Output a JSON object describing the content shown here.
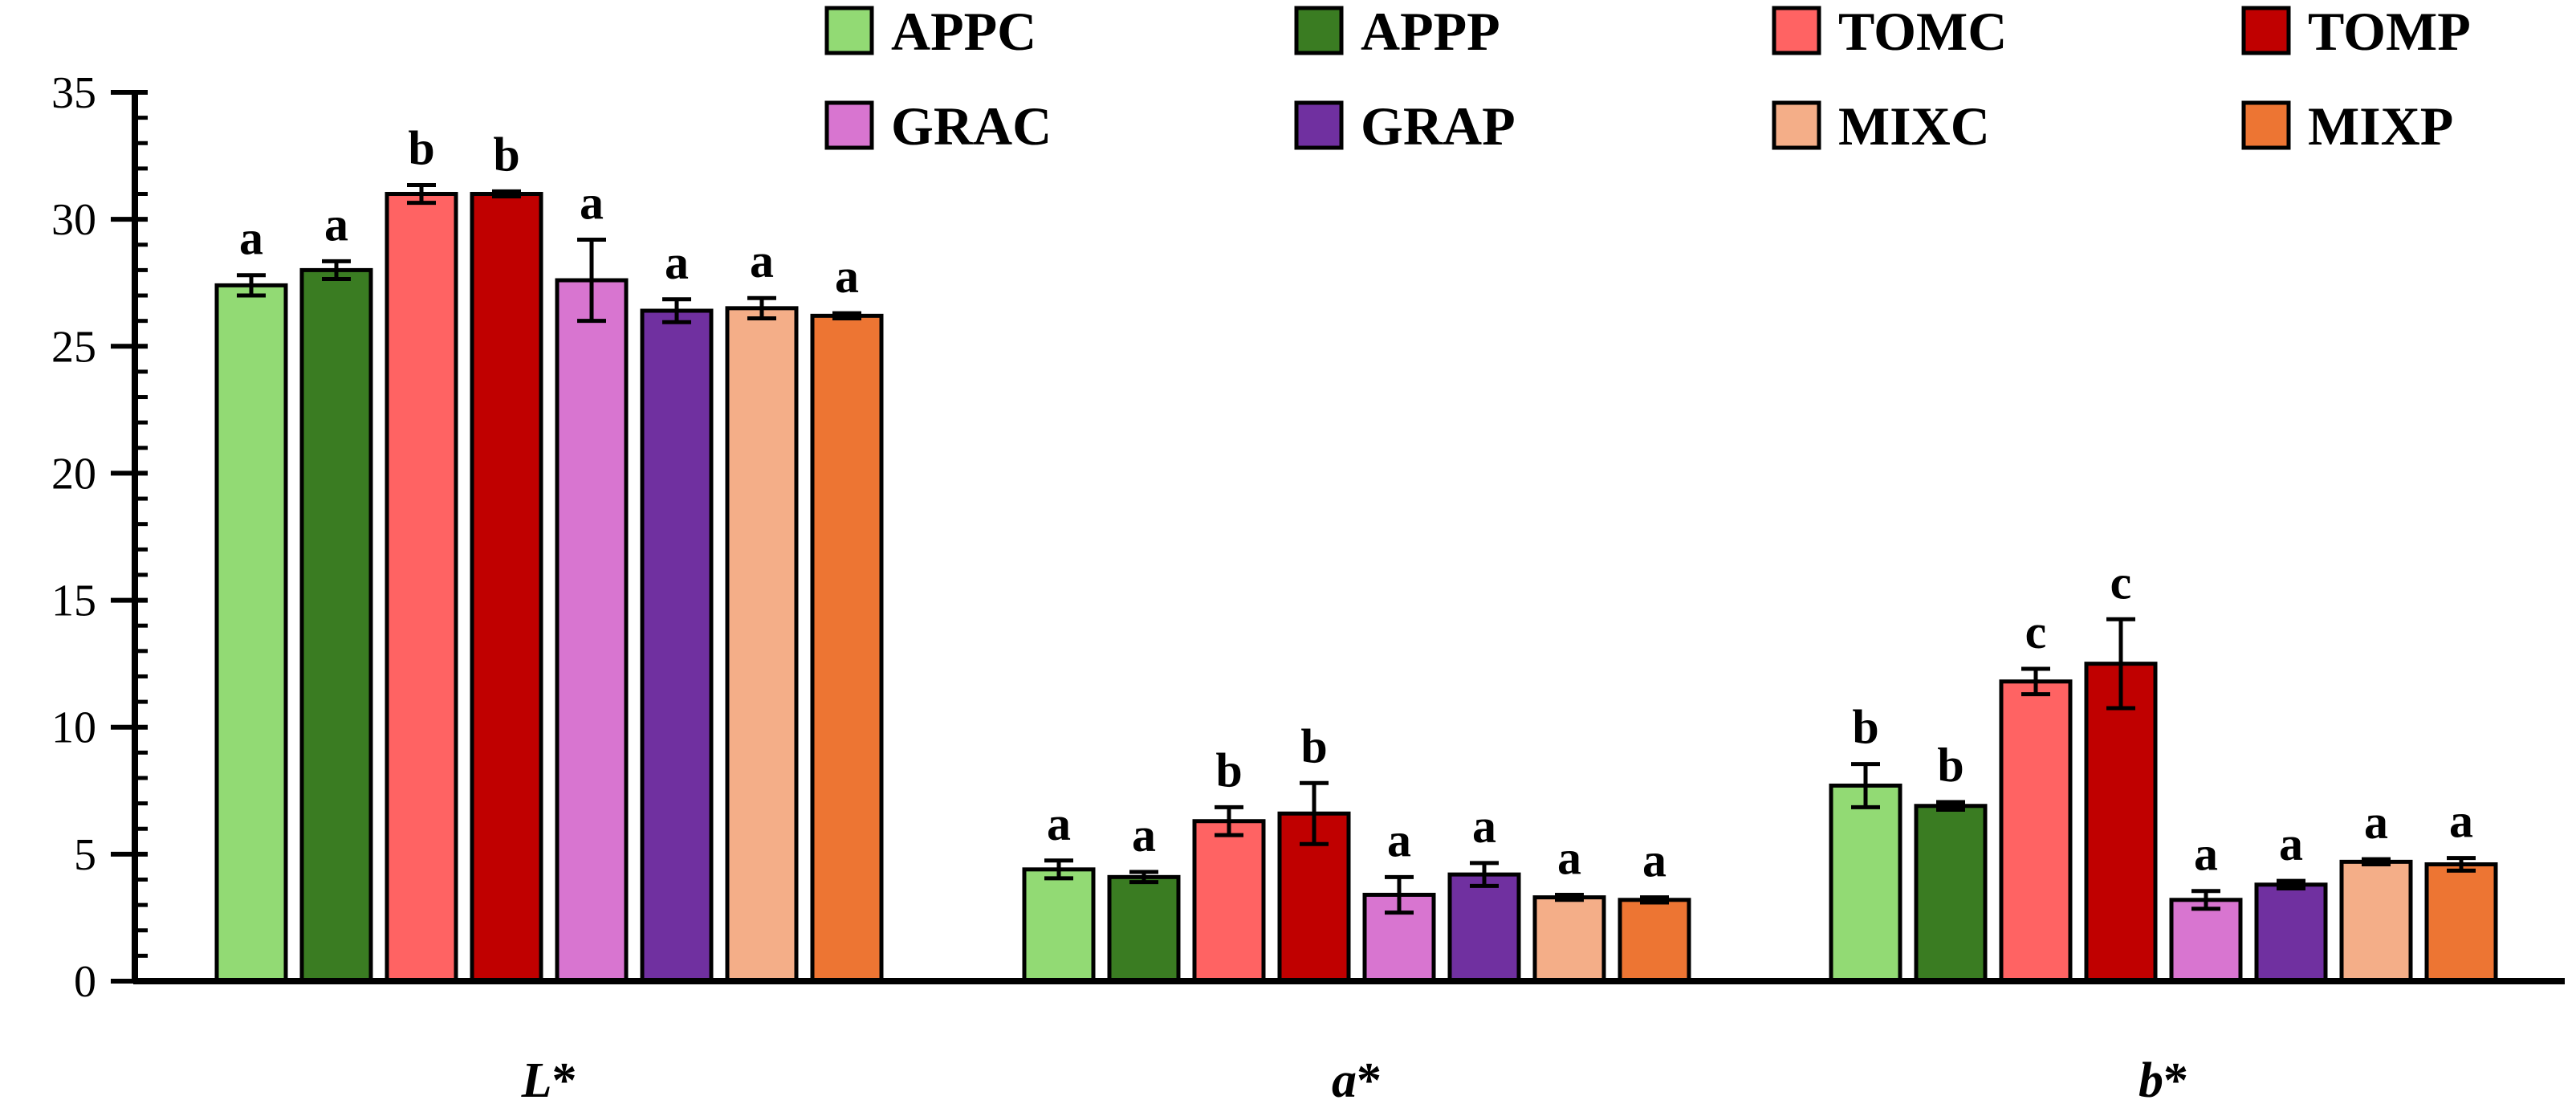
{
  "chart_data": {
    "type": "bar",
    "title": "",
    "xlabel": "",
    "ylabel": "",
    "ylim": [
      0,
      35
    ],
    "yticks": [
      0,
      5,
      10,
      15,
      20,
      25,
      30,
      35
    ],
    "ytick_labels": [
      "0",
      "5",
      "10",
      "15",
      "20",
      "25",
      "30",
      "35"
    ],
    "categories": [
      "L*",
      "a*",
      "b*"
    ],
    "category_labels": [
      {
        "letter": "L",
        "suffix": "*"
      },
      {
        "letter": "a",
        "suffix": "*"
      },
      {
        "letter": "b",
        "suffix": "*"
      }
    ],
    "legend_position": "top",
    "series": [
      {
        "name": "APPC",
        "color": "#92DA74",
        "values": [
          27.4,
          4.4,
          7.7
        ],
        "errors": [
          0.4,
          0.35,
          0.85
        ],
        "letters": [
          "a",
          "a",
          "b"
        ]
      },
      {
        "name": "APPP",
        "color": "#3A7C22",
        "values": [
          28.0,
          4.1,
          6.9
        ],
        "errors": [
          0.35,
          0.2,
          0.15
        ],
        "letters": [
          "a",
          "a",
          "b"
        ]
      },
      {
        "name": "TOMC",
        "color": "#FF6363",
        "values": [
          31.0,
          6.3,
          11.8
        ],
        "errors": [
          0.35,
          0.55,
          0.5
        ],
        "letters": [
          "b",
          "b",
          "c"
        ]
      },
      {
        "name": "TOMP",
        "color": "#C00000",
        "values": [
          31.0,
          6.6,
          12.5
        ],
        "errors": [
          0.1,
          1.2,
          1.75
        ],
        "letters": [
          "b",
          "b",
          "c"
        ]
      },
      {
        "name": "GRAC",
        "color": "#D875D0",
        "values": [
          27.6,
          3.4,
          3.2
        ],
        "errors": [
          1.6,
          0.7,
          0.35
        ],
        "letters": [
          "a",
          "a",
          "a"
        ]
      },
      {
        "name": "GRAP",
        "color": "#7030A0",
        "values": [
          26.4,
          4.2,
          3.8
        ],
        "errors": [
          0.45,
          0.45,
          0.15
        ],
        "letters": [
          "a",
          "a",
          "a"
        ]
      },
      {
        "name": "MIXC",
        "color": "#F4AE88",
        "values": [
          26.5,
          3.3,
          4.7
        ],
        "errors": [
          0.4,
          0.1,
          0.1
        ],
        "letters": [
          "a",
          "a",
          "a"
        ]
      },
      {
        "name": "MIXP",
        "color": "#ED7533",
        "values": [
          26.2,
          3.2,
          4.6
        ],
        "errors": [
          0.1,
          0.1,
          0.25
        ],
        "letters": [
          "a",
          "a",
          "a"
        ]
      }
    ]
  }
}
